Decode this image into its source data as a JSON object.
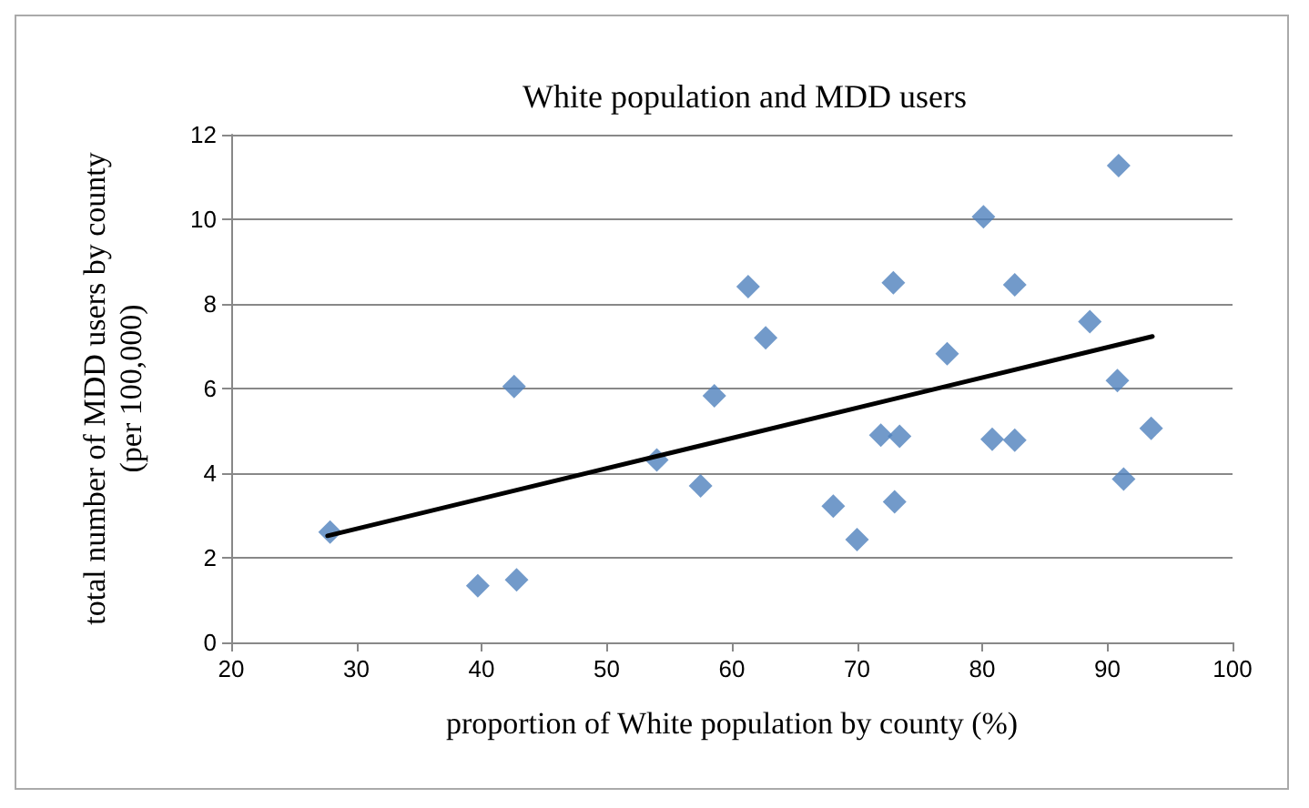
{
  "chart_data": {
    "type": "scatter",
    "title": "White population and MDD users",
    "xlabel": "proportion of White population by county (%)",
    "ylabel": "total number of MDD users by county\n(per 100,000)",
    "series": [
      {
        "color": "#4f81bd",
        "marker": "diamond",
        "x": [
          27.9,
          39.7,
          42.8,
          42.6,
          54.0,
          57.5,
          58.6,
          61.3,
          62.7,
          68.1,
          70.0,
          71.9,
          72.9,
          73.4,
          73.0,
          77.2,
          80.1,
          80.8,
          82.6,
          82.6,
          88.6,
          90.9,
          90.8,
          91.3,
          93.5
        ],
        "values": [
          2.61,
          1.34,
          1.48,
          6.05,
          4.31,
          3.7,
          5.83,
          8.41,
          7.2,
          3.22,
          2.43,
          4.9,
          8.5,
          4.87,
          3.32,
          6.82,
          10.06,
          4.8,
          8.45,
          4.78,
          7.58,
          11.27,
          6.19,
          3.86,
          5.06
        ]
      },
      {
        "type": "line",
        "color": "#000000",
        "marker": "none",
        "line_style": "solid",
        "x": [
          27.7,
          93.6
        ],
        "values": [
          2.52,
          7.23
        ]
      }
    ],
    "xlim": [
      20,
      100
    ],
    "xticks": [
      20,
      30,
      40,
      50,
      60,
      70,
      80,
      90,
      100
    ],
    "ylim": [
      0,
      12
    ],
    "yticks": [
      0,
      2,
      4,
      6,
      8,
      10,
      12
    ],
    "grid": "y"
  }
}
